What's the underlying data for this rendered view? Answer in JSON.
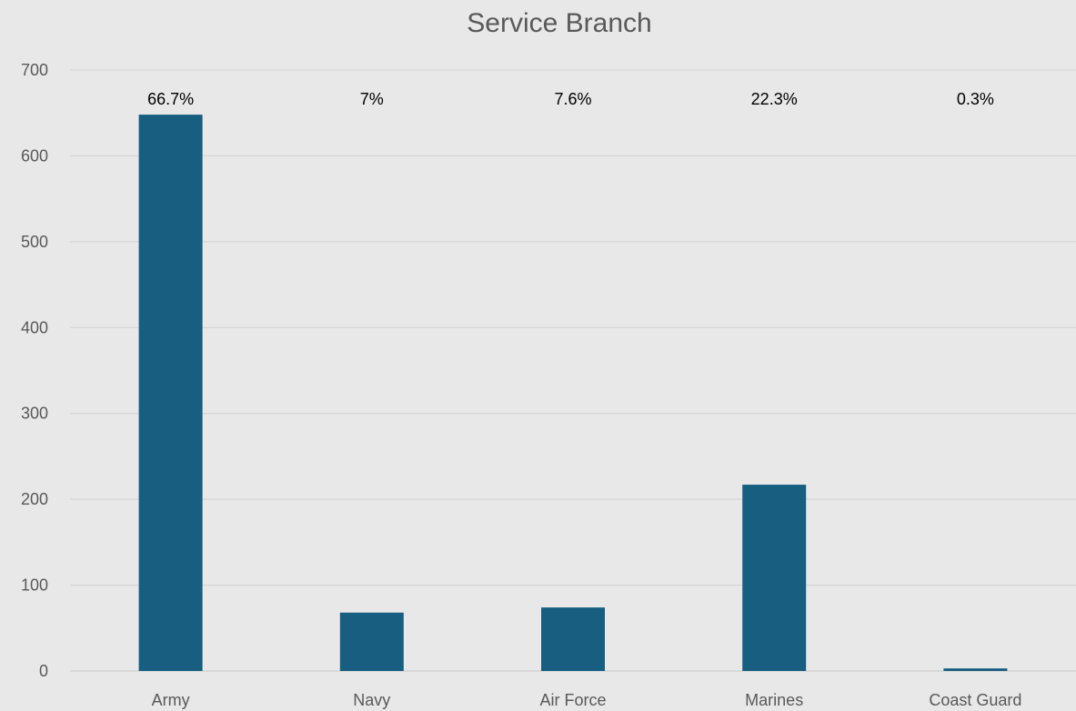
{
  "colors": {
    "background": "#e8e8e8",
    "bar": "#175e80",
    "gridline": "#d0d0d0",
    "axis_text": "#595959",
    "data_label_text": "#000000"
  },
  "chart_data": {
    "type": "bar",
    "title": "Service Branch",
    "xlabel": "",
    "ylabel": "",
    "categories": [
      "Army",
      "Navy",
      "Air Force",
      "Marines",
      "Coast Guard"
    ],
    "values": [
      648,
      68,
      74,
      217,
      3
    ],
    "data_labels": [
      "66.7%",
      "7%",
      "7.6%",
      "22.3%",
      "0.3%"
    ],
    "ylim": [
      0,
      700
    ],
    "yticks": [
      0,
      100,
      200,
      300,
      400,
      500,
      600,
      700
    ],
    "grid": true,
    "legend": "none"
  }
}
